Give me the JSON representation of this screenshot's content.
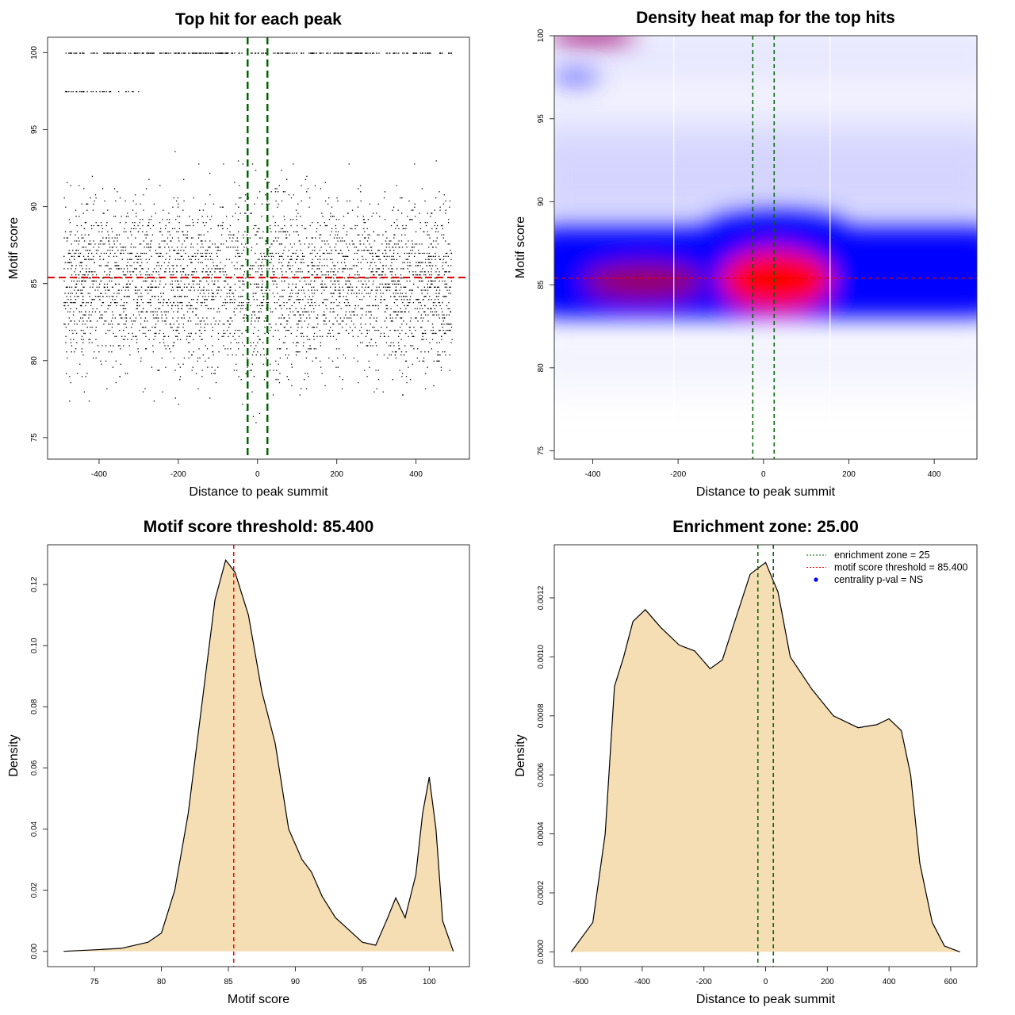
{
  "chart_data": [
    {
      "type": "scatter",
      "title": "Top hit for each peak",
      "xlabel": "Distance to peak summit",
      "ylabel": "Motif score",
      "xlim": [
        -530,
        535
      ],
      "ylim": [
        73.6,
        101
      ],
      "xticks": [
        -400,
        -200,
        0,
        200,
        400
      ],
      "yticks": [
        75,
        80,
        85,
        90,
        95,
        100
      ],
      "hlines": [
        {
          "y": 85.4,
          "color": "#dd0000"
        }
      ],
      "vlines": [
        {
          "x": -25,
          "color": "#006400"
        },
        {
          "x": 25,
          "color": "#006400"
        }
      ],
      "point_cloud": {
        "x_range": [
          -490,
          490
        ],
        "score_center": 85,
        "score_sd": 2.7,
        "discrete_rows": [
          100,
          97.5
        ]
      }
    },
    {
      "type": "heatmap",
      "title": "Density heat map for the top hits",
      "xlabel": "Distance to peak summit",
      "ylabel": "Motif score",
      "xlim": [
        -490,
        500
      ],
      "ylim": [
        74.5,
        100
      ],
      "xticks": [
        -400,
        -200,
        0,
        200,
        400
      ],
      "yticks": [
        75,
        80,
        85,
        90,
        95,
        100
      ],
      "colors": [
        "#ffffff",
        "#0000ff",
        "#ff0000"
      ],
      "hot_spot": {
        "x": 30,
        "y": 85.3
      },
      "band_y": [
        83,
        88.5
      ],
      "hlines": [
        {
          "y": 85.4,
          "color": "#dd0000"
        }
      ],
      "vlines": [
        {
          "x": -25,
          "color": "#006400"
        },
        {
          "x": 25,
          "color": "#006400"
        }
      ]
    },
    {
      "type": "area",
      "title": "Motif score threshold: 85.400",
      "xlabel": "Motif score",
      "ylabel": "Density",
      "xlim": [
        71.5,
        103
      ],
      "ylim": [
        -0.005,
        0.133
      ],
      "xticks": [
        75,
        80,
        85,
        90,
        95,
        100
      ],
      "yticks": [
        0,
        0.02,
        0.04,
        0.06,
        0.08,
        0.1,
        0.12
      ],
      "ytick_labels": [
        "0.00",
        "0.02",
        "0.04",
        "0.06",
        "0.08",
        "0.10",
        "0.12"
      ],
      "fill": "#f5deb3",
      "vlines": [
        {
          "x": 85.4,
          "color": "#ff0000"
        }
      ],
      "x": [
        72.7,
        75,
        77,
        79,
        80,
        81,
        82,
        83,
        84,
        84.8,
        85.5,
        86.5,
        87.5,
        88.5,
        89.5,
        90.5,
        91.2,
        92,
        93,
        94,
        95,
        96,
        96.8,
        97.5,
        98.2,
        99,
        99.5,
        100,
        100.5,
        101,
        101.8
      ],
      "y": [
        0,
        0.0005,
        0.001,
        0.003,
        0.006,
        0.02,
        0.045,
        0.08,
        0.115,
        0.128,
        0.124,
        0.11,
        0.085,
        0.068,
        0.04,
        0.03,
        0.026,
        0.018,
        0.011,
        0.007,
        0.003,
        0.002,
        0.01,
        0.0175,
        0.011,
        0.025,
        0.045,
        0.057,
        0.04,
        0.01,
        0
      ]
    },
    {
      "type": "area",
      "title": "Enrichment zone: 25.00",
      "xlabel": "Distance to peak summit",
      "ylabel": "Density",
      "xlim": [
        -685,
        685
      ],
      "ylim": [
        -5e-05,
        0.00138
      ],
      "xticks": [
        -600,
        -400,
        -200,
        0,
        200,
        400,
        600
      ],
      "yticks": [
        0,
        0.0002,
        0.0004,
        0.0006,
        0.0008,
        0.001,
        0.0012
      ],
      "ytick_labels": [
        "0.0000",
        "0.0002",
        "0.0004",
        "0.0006",
        "0.0008",
        "0.0010",
        "0.0012"
      ],
      "fill": "#f5deb3",
      "vlines": [
        {
          "x": -25,
          "color": "#006400"
        },
        {
          "x": 25,
          "color": "#006400"
        }
      ],
      "legend": {
        "position": "top-right",
        "entries": [
          {
            "label": "enrichment zone = 25",
            "color": "#006400"
          },
          {
            "label": "motif score threshold = 85.400",
            "color": "#ff0000"
          },
          {
            "label": "centrality p-val = NS",
            "color": "#0000ff"
          }
        ]
      },
      "x": [
        -630,
        -560,
        -520,
        -490,
        -460,
        -430,
        -390,
        -340,
        -280,
        -230,
        -180,
        -140,
        -100,
        -50,
        0,
        40,
        80,
        150,
        220,
        300,
        360,
        400,
        440,
        470,
        500,
        540,
        580,
        630
      ],
      "y": [
        0,
        0.0001,
        0.0004,
        0.0009,
        0.001,
        0.00112,
        0.00116,
        0.0011,
        0.00104,
        0.00102,
        0.00096,
        0.00099,
        0.00112,
        0.00128,
        0.00132,
        0.00122,
        0.001,
        0.00089,
        0.0008,
        0.00076,
        0.00077,
        0.00079,
        0.00075,
        0.0006,
        0.0003,
        0.0001,
        2e-05,
        0
      ]
    }
  ]
}
